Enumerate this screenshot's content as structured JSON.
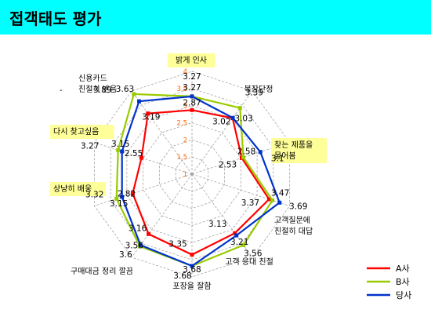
{
  "page": {
    "title": "접객태도 평가"
  },
  "chart_data": {
    "type": "radar",
    "title": "",
    "rlim": [
      1,
      4
    ],
    "ticks": [
      "1",
      "1.5",
      "2",
      "2.5",
      "3",
      "3.5",
      "4"
    ],
    "grid": true,
    "legend_position": "bottom-right",
    "axes": [
      {
        "lines": [
          "밝게 인사"
        ],
        "highlight": true
      },
      {
        "lines": [
          "복장단정"
        ],
        "highlight": false
      },
      {
        "lines": [
          "찾는 제품을",
          "물어봄"
        ],
        "highlight": true
      },
      {
        "lines": [
          "고객질문에",
          "친절히 대답"
        ],
        "highlight": false
      },
      {
        "lines": [
          "고객 응대 친절"
        ],
        "highlight": false
      },
      {
        "lines": [
          "포장을 잘함"
        ],
        "highlight": false
      },
      {
        "lines": [
          "구매대금 정리 깔끔"
        ],
        "highlight": false
      },
      {
        "lines": [
          "상냥히 배웅"
        ],
        "highlight": true
      },
      {
        "lines": [
          "다시 찾고싶음"
        ],
        "highlight": true
      },
      {
        "lines": [
          "신용카드",
          "친절히 받음"
        ],
        "highlight": false
      }
    ],
    "series": [
      {
        "name": "A사",
        "color": "#FF0000",
        "values": [
          2.87,
          3.02,
          2.53,
          3.37,
          3.13,
          3.35,
          3.16,
          2.82,
          2.55,
          3.19
        ]
      },
      {
        "name": "B사",
        "color": "#99CC00",
        "values": [
          3.27,
          3.39,
          2.58,
          3.47,
          3.56,
          3.68,
          3.6,
          3.32,
          3.27,
          3.89
        ]
      },
      {
        "name": "당사",
        "color": "#0033CC",
        "values": [
          3.27,
          3.03,
          3.1,
          3.69,
          3.21,
          3.68,
          3.56,
          3.15,
          3.15,
          3.63
        ]
      }
    ],
    "note": "-"
  }
}
